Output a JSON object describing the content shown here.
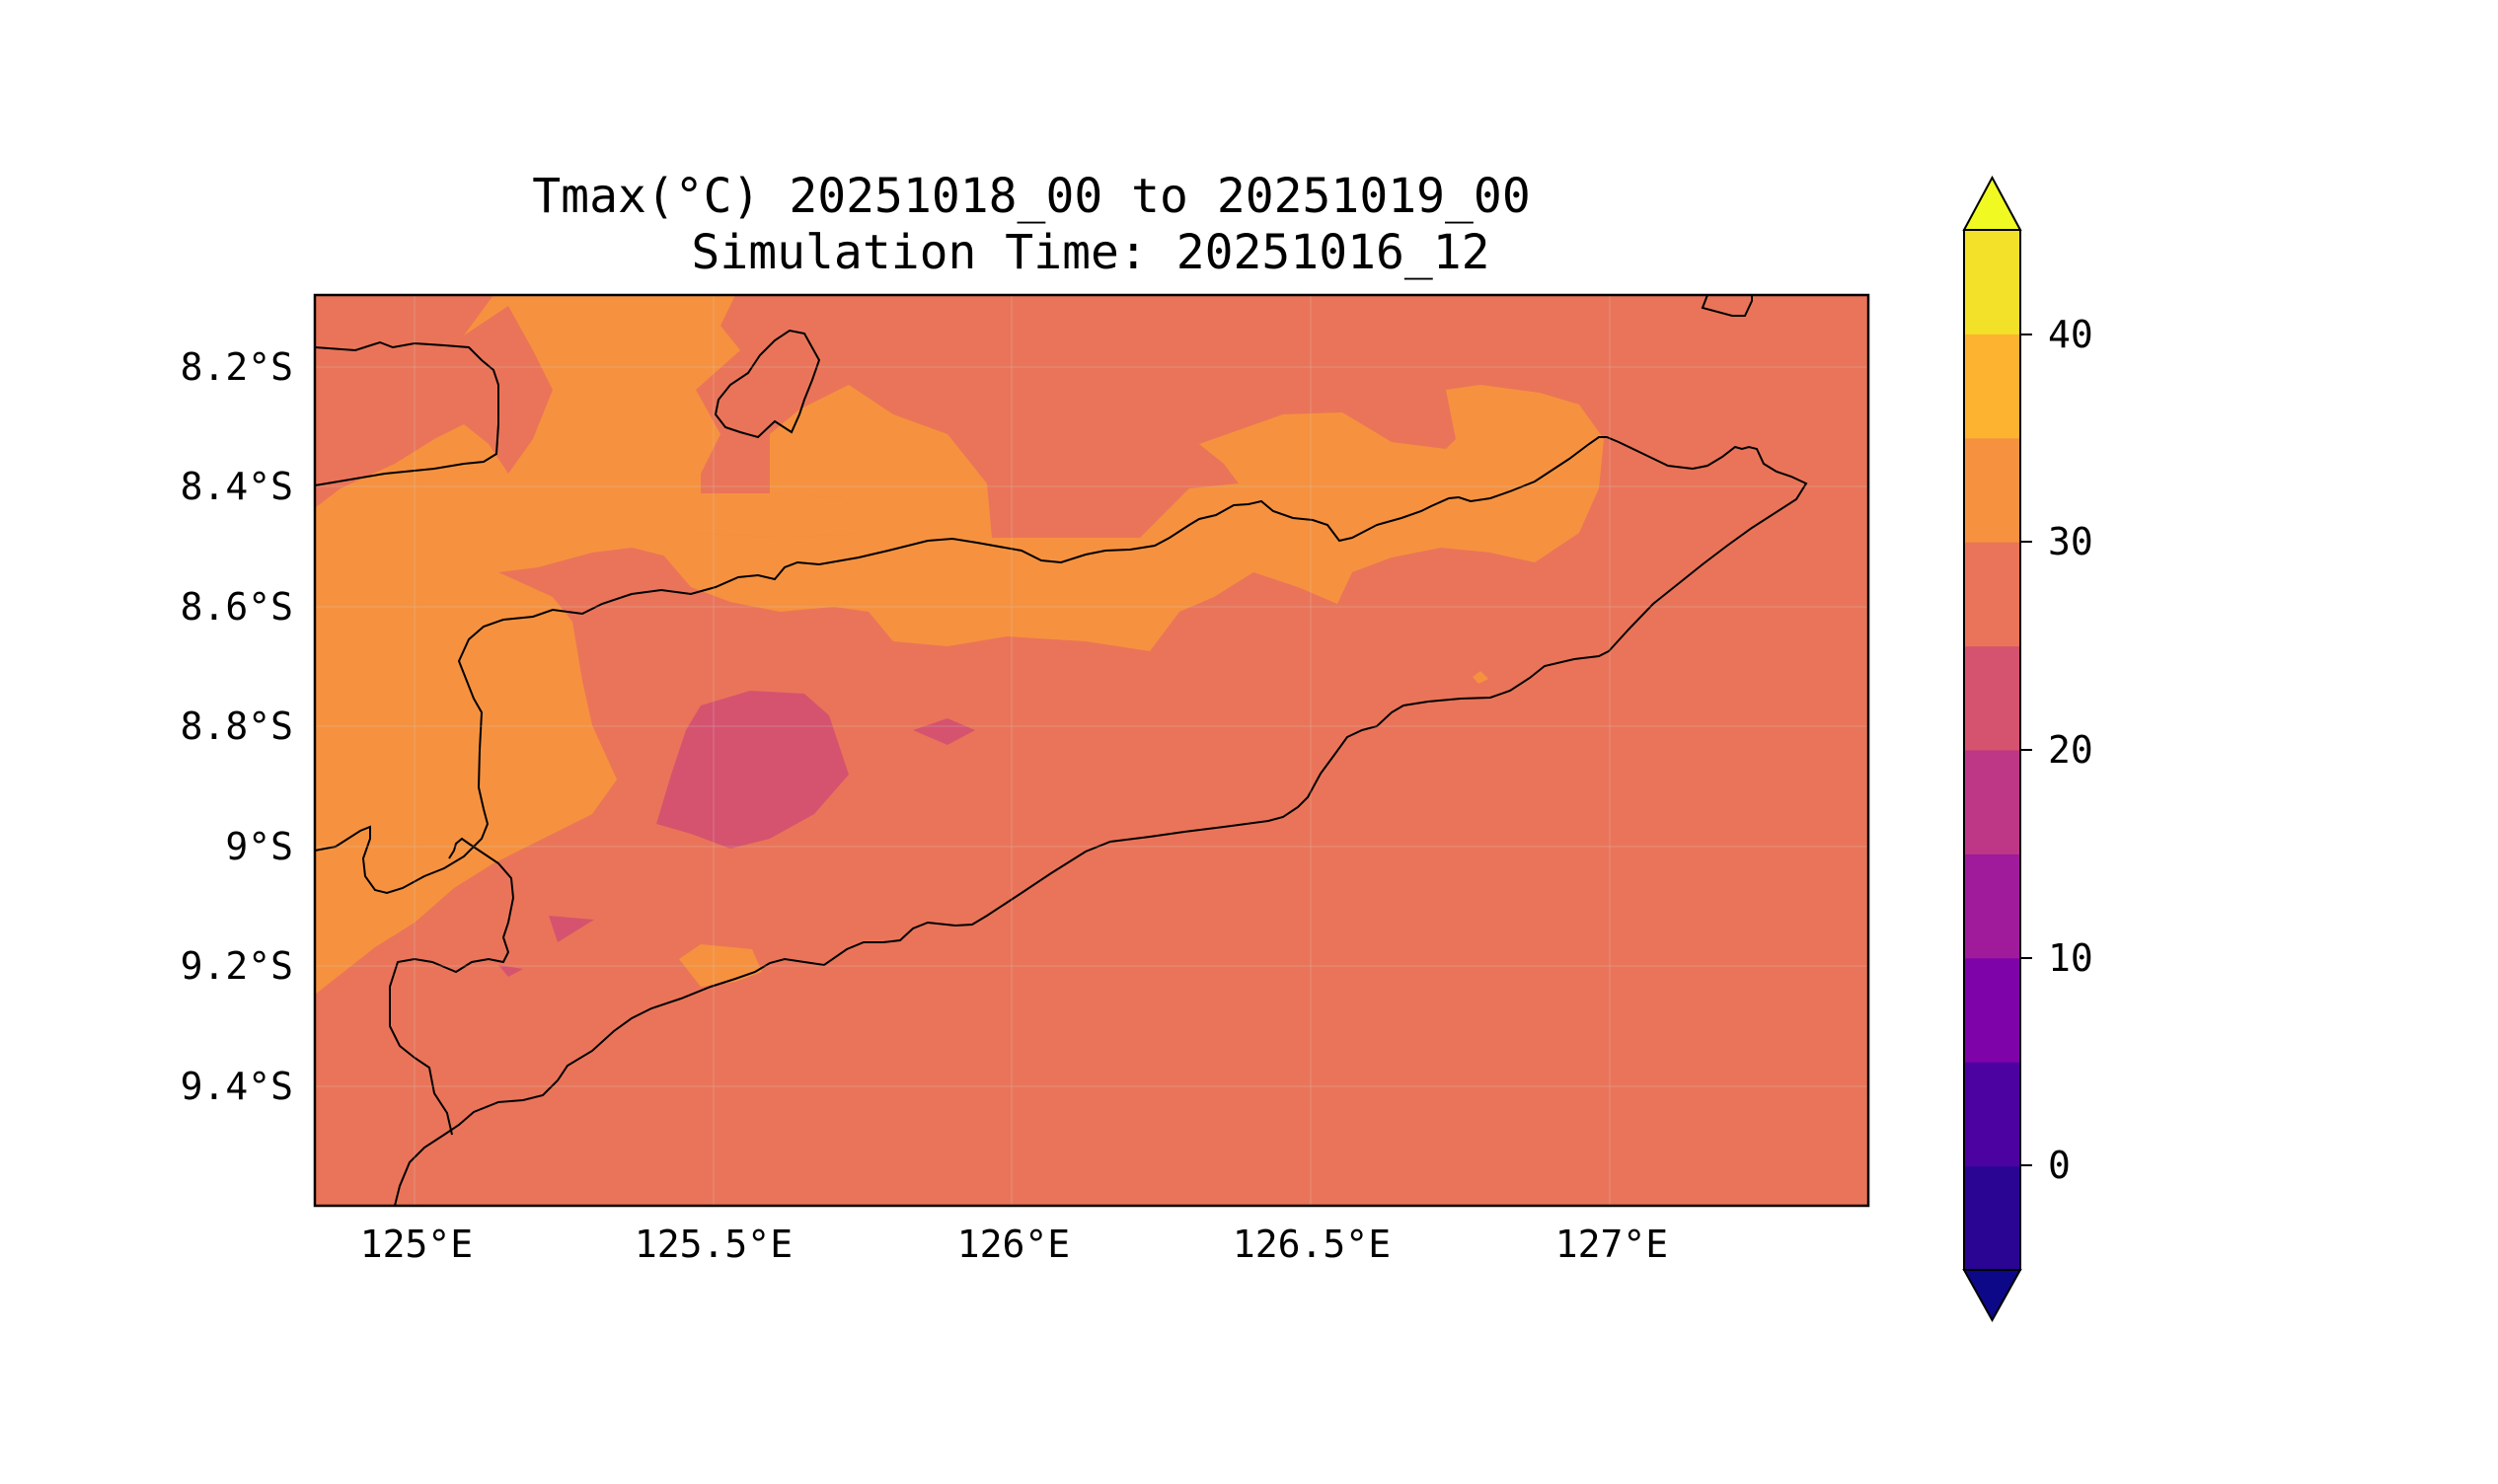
{
  "figure": {
    "title_line1": "Tmax(°C) 20251018_00 to 20251019_00",
    "title_line2": "Simulation Time: 20251016_12"
  },
  "map": {
    "lon_ticks": [
      "125°E",
      "125.5°E",
      "126°E",
      "126.5°E",
      "127°E"
    ],
    "lat_ticks": [
      "8.2°S",
      "8.4°S",
      "8.6°S",
      "8.8°S",
      "9°S",
      "9.2°S",
      "9.4°S"
    ],
    "lon_range": [
      124.83,
      127.43
    ],
    "lat_range": [
      -9.6,
      -8.08
    ],
    "colors": {
      "below_25": "#d5536f",
      "range_25_30": "#ea7459",
      "range_30_35": "#f6923f"
    }
  },
  "colorbar": {
    "ticks": [
      "0",
      "10",
      "20",
      "30",
      "40"
    ],
    "levels": [
      -5,
      0,
      5,
      10,
      15,
      20,
      25,
      30,
      35,
      40,
      45
    ],
    "colors": [
      "#2a0593",
      "#4c02a1",
      "#7e03a8",
      "#a01a9c",
      "#bd3786",
      "#d5536f",
      "#ea7459",
      "#f6923f",
      "#fdb32f",
      "#f2e029"
    ],
    "under_color": "#0d0887",
    "over_color": "#f0f921",
    "extend": "both"
  }
}
